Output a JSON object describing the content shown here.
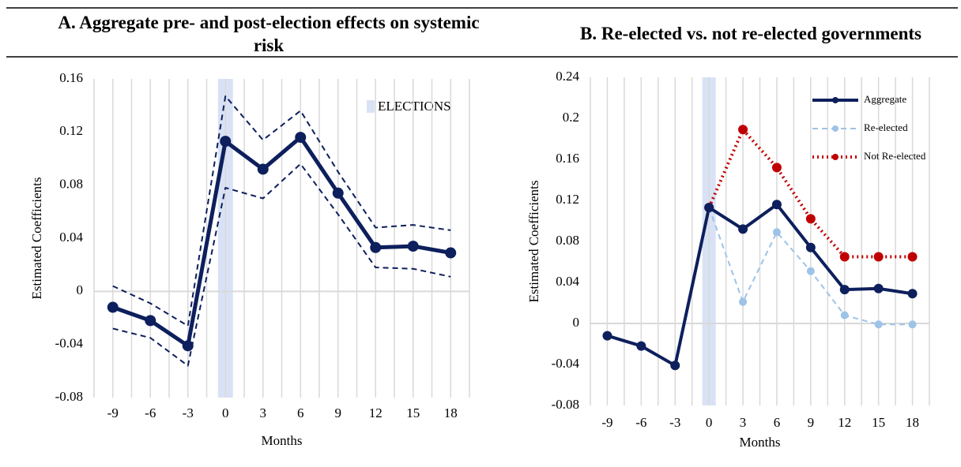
{
  "chart_data": [
    {
      "type": "line",
      "title": "A.  Aggregate pre- and post-election effects on systemic risk",
      "x_label": "Months",
      "y_label": "Estimated Coefficients",
      "categories": [
        "-9",
        "-6",
        "-3",
        "0",
        "3",
        "6",
        "9",
        "12",
        "15",
        "18"
      ],
      "series": [
        {
          "color": "#0d1f5c",
          "style": "solid",
          "width": 5,
          "marker": 7,
          "values": [
            -0.012,
            -0.022,
            -0.041,
            0.113,
            0.092,
            0.116,
            0.074,
            0.033,
            0.034,
            0.029
          ]
        },
        {
          "color": "#0d1f5c",
          "style": "dashed",
          "width": 2,
          "marker": 0,
          "values": [
            0.004,
            -0.009,
            -0.026,
            0.147,
            0.114,
            0.136,
            0.09,
            0.048,
            0.05,
            0.046
          ]
        },
        {
          "color": "#0d1f5c",
          "style": "dashed",
          "width": 2,
          "marker": 0,
          "values": [
            -0.028,
            -0.035,
            -0.056,
            0.078,
            0.07,
            0.096,
            0.058,
            0.018,
            0.017,
            0.011
          ]
        }
      ],
      "shade": {
        "category": "0",
        "color": "#d9e2f5",
        "label": "ELECTIONS"
      },
      "ylim": [
        -0.08,
        0.16
      ],
      "yticks": [
        -0.08,
        -0.04,
        0,
        0.04,
        0.08,
        0.12,
        0.16
      ],
      "grid": true
    },
    {
      "type": "line",
      "title": "B.  Re-elected vs. not re-elected governments",
      "x_label": "Months",
      "y_label": "Estimated Coefficients",
      "categories": [
        "-9",
        "-6",
        "-3",
        "0",
        "3",
        "6",
        "9",
        "12",
        "15",
        "18"
      ],
      "series": [
        {
          "name": "Aggregate",
          "color": "#0d1f5c",
          "style": "solid",
          "width": 4,
          "marker": 6,
          "values": [
            -0.012,
            -0.022,
            -0.041,
            0.113,
            0.092,
            0.116,
            0.074,
            0.033,
            0.034,
            0.029
          ]
        },
        {
          "name": "Re-elected",
          "color": "#9dc3e6",
          "style": "dashed",
          "width": 2,
          "marker": 5,
          "values": [
            null,
            null,
            null,
            0.113,
            0.021,
            0.089,
            0.051,
            0.008,
            -0.001,
            -0.001
          ]
        },
        {
          "name": "Not Re-elected",
          "color": "#c00000",
          "style": "dotted",
          "width": 4,
          "marker": 6,
          "values": [
            null,
            null,
            null,
            0.113,
            0.189,
            0.152,
            0.102,
            0.065,
            0.065,
            0.065
          ]
        }
      ],
      "shade": {
        "category": "0",
        "color": "#d9e2f5"
      },
      "legend": "upper right",
      "ylim": [
        -0.08,
        0.24
      ],
      "yticks": [
        -0.08,
        -0.04,
        0,
        0.04,
        0.08,
        0.12,
        0.16,
        0.2,
        0.24
      ],
      "grid": true
    }
  ]
}
